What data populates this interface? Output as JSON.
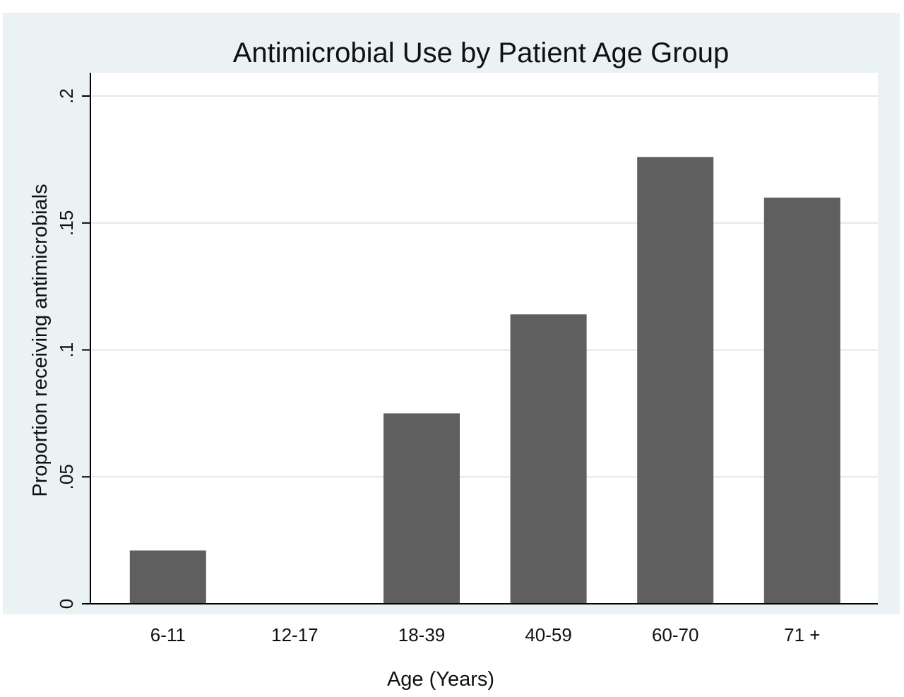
{
  "chart_data": {
    "type": "bar",
    "title": "Antimicrobial Use by Patient Age Group",
    "xlabel": "Age (Years)",
    "ylabel": "Proportion receiving antimicrobials",
    "categories": [
      "6-11",
      "12-17",
      "18-39",
      "40-59",
      "60-70",
      "71 +"
    ],
    "values": [
      0.021,
      0.0,
      0.075,
      0.114,
      0.176,
      0.16
    ],
    "ylim": [
      0,
      0.2
    ],
    "yticks": [
      0,
      0.05,
      0.1,
      0.15,
      0.2
    ],
    "ytick_labels": [
      "0",
      ".05",
      ".1",
      ".15",
      ".2"
    ],
    "grid": true,
    "colors": {
      "bar": "#5f5f5f",
      "outer_background": "#eaf2f3",
      "plot_background": "#ffffff",
      "grid": "#e6e6e6",
      "axis": "#000000"
    }
  }
}
